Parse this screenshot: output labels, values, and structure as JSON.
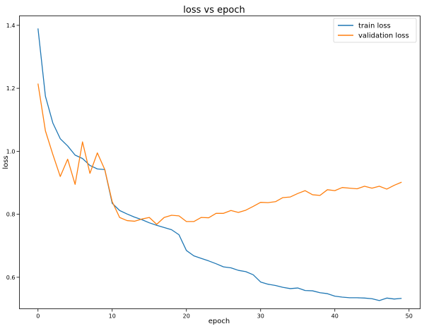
{
  "chart_data": {
    "type": "line",
    "title": "loss vs epoch",
    "xlabel": "epoch",
    "ylabel": "loss",
    "xlim": [
      -2.5,
      51.5
    ],
    "ylim": [
      0.5,
      1.43
    ],
    "x_ticks": [
      0,
      10,
      20,
      30,
      40,
      50
    ],
    "y_ticks": [
      0.6,
      0.8,
      1.0,
      1.2,
      1.4
    ],
    "grid": false,
    "legend_position": "top-right",
    "x": [
      0,
      1,
      2,
      3,
      4,
      5,
      6,
      7,
      8,
      9,
      10,
      11,
      12,
      13,
      14,
      15,
      16,
      17,
      18,
      19,
      20,
      21,
      22,
      23,
      24,
      25,
      26,
      27,
      28,
      29,
      30,
      31,
      32,
      33,
      34,
      35,
      36,
      37,
      38,
      39,
      40,
      41,
      42,
      43,
      44,
      45,
      46,
      47,
      48,
      49
    ],
    "series": [
      {
        "name": "train loss",
        "color": "#1f77b4",
        "values": [
          1.39,
          1.175,
          1.09,
          1.04,
          1.017,
          0.988,
          0.977,
          0.955,
          0.944,
          0.942,
          0.835,
          0.812,
          0.801,
          0.791,
          0.783,
          0.773,
          0.765,
          0.758,
          0.751,
          0.735,
          0.685,
          0.668,
          0.66,
          0.652,
          0.643,
          0.633,
          0.63,
          0.622,
          0.618,
          0.608,
          0.585,
          0.578,
          0.574,
          0.568,
          0.564,
          0.566,
          0.558,
          0.557,
          0.551,
          0.548,
          0.54,
          0.537,
          0.535,
          0.535,
          0.534,
          0.532,
          0.526,
          0.534,
          0.531,
          0.533
        ]
      },
      {
        "name": "validation loss",
        "color": "#ff7f0e",
        "values": [
          1.215,
          1.065,
          0.99,
          0.92,
          0.975,
          0.895,
          1.03,
          0.93,
          0.995,
          0.942,
          0.84,
          0.79,
          0.78,
          0.778,
          0.785,
          0.79,
          0.768,
          0.79,
          0.797,
          0.795,
          0.777,
          0.777,
          0.79,
          0.789,
          0.803,
          0.803,
          0.812,
          0.806,
          0.813,
          0.825,
          0.838,
          0.837,
          0.84,
          0.853,
          0.855,
          0.866,
          0.875,
          0.862,
          0.86,
          0.878,
          0.875,
          0.885,
          0.883,
          0.881,
          0.889,
          0.883,
          0.889,
          0.88,
          0.892,
          0.902
        ]
      }
    ]
  }
}
